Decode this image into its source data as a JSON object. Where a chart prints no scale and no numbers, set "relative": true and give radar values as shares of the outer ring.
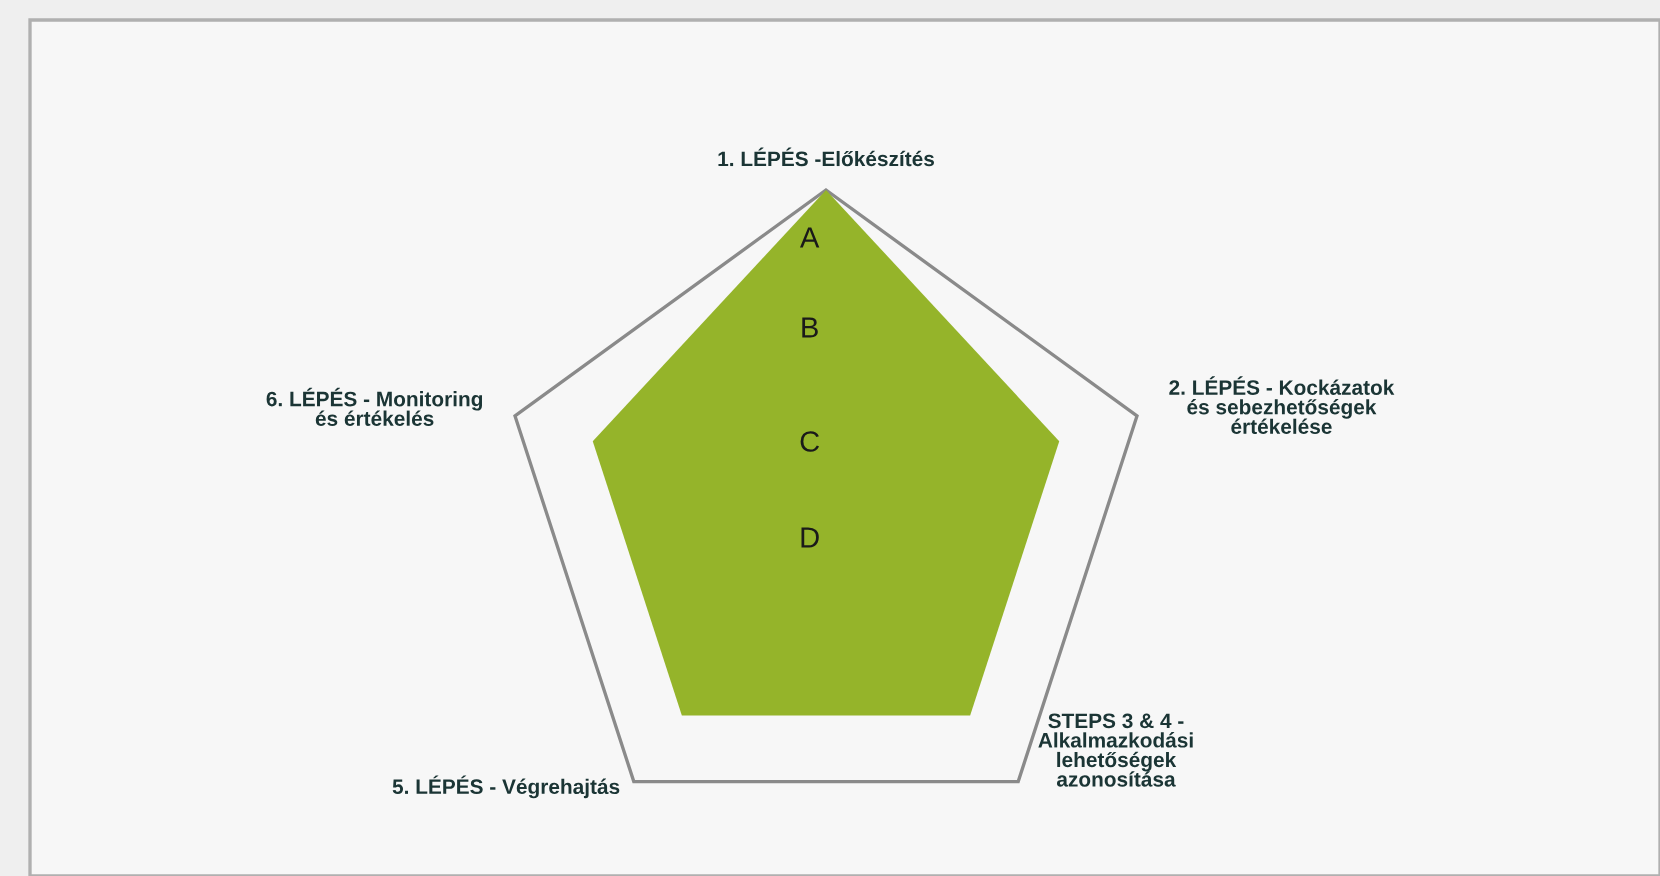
{
  "chart_data": {
    "type": "radar",
    "relative": true,
    "categories": [
      "1. LÉPÉS -Előkészítés",
      "2. LÉPÉS - Kockázatok\nés sebezhetőségek\nértékelése",
      "STEPS 3 & 4 -\nAlkalmazkodási\nlehetőségek\nazonosítása",
      "5. LÉPÉS - Végrehajtás",
      "6. LÉPÉS - Monitoring\nés értékelés"
    ],
    "series": [
      {
        "color": "#95b42a",
        "values": [
          1,
          0.75,
          0.75,
          0.75,
          0.75
        ]
      }
    ],
    "annotations": [
      "A",
      "B",
      "C",
      "D"
    ]
  }
}
